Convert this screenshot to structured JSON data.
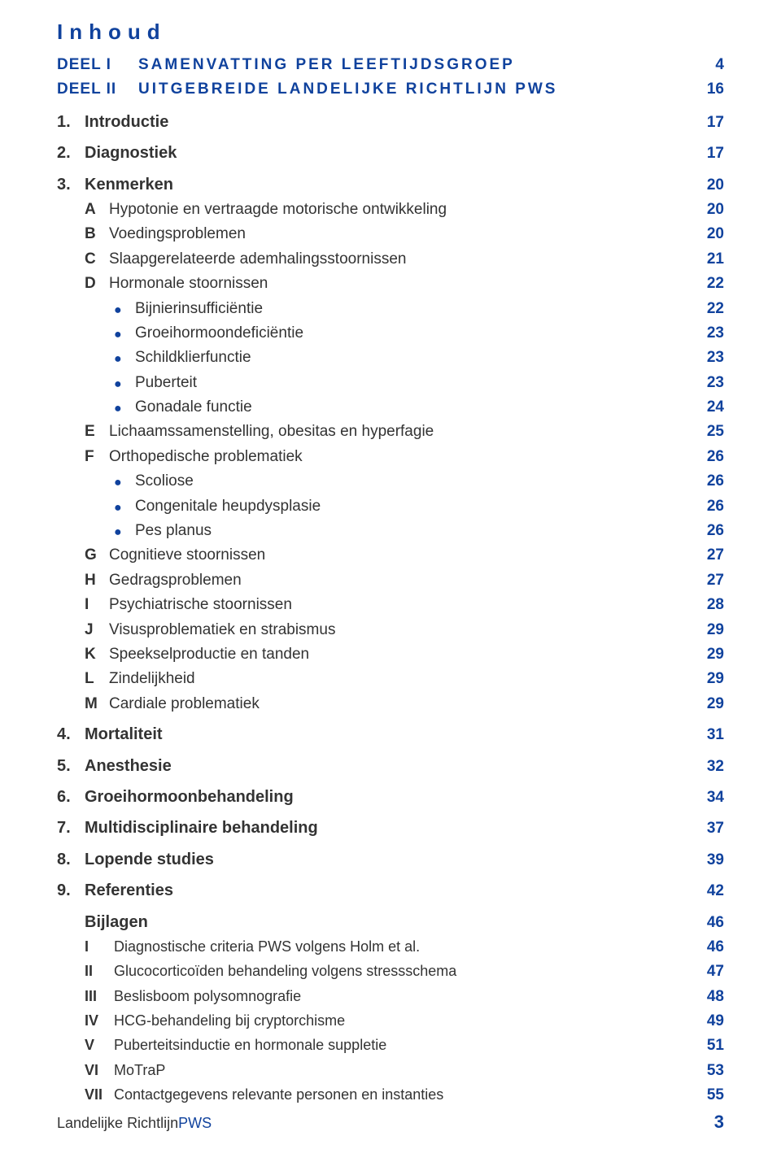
{
  "colors": {
    "accent": "#10429d",
    "text": "#333333",
    "background": "#ffffff"
  },
  "title": "Inhoud",
  "parts": [
    {
      "label": "DEEL I",
      "title": "SAMENVATTING PER LEEFTIJDSGROEP",
      "page": "4"
    },
    {
      "label": "DEEL II",
      "title": "UITGEBREIDE LANDELIJKE RICHTLIJN PWS",
      "page": "16"
    }
  ],
  "sections": [
    {
      "num": "1.",
      "title": "Introductie",
      "page": "17"
    },
    {
      "num": "2.",
      "title": "Diagnostiek",
      "page": "17"
    },
    {
      "num": "3.",
      "title": "Kenmerken",
      "page": "20",
      "subs": [
        {
          "letter": "A",
          "title": "Hypotonie en vertraagde motorische ontwikkeling",
          "page": "20"
        },
        {
          "letter": "B",
          "title": "Voedingsproblemen",
          "page": "20"
        },
        {
          "letter": "C",
          "title": "Slaapgerelateerde ademhalingsstoornissen",
          "page": "21"
        },
        {
          "letter": "D",
          "title": "Hormonale stoornissen",
          "page": "22",
          "bullets": [
            {
              "title": "Bijnierinsufficiëntie",
              "page": "22"
            },
            {
              "title": "Groeihormoondeficiëntie",
              "page": "23"
            },
            {
              "title": "Schildklierfunctie",
              "page": "23"
            },
            {
              "title": "Puberteit",
              "page": "23"
            },
            {
              "title": "Gonadale functie",
              "page": "24"
            }
          ]
        },
        {
          "letter": "E",
          "title": "Lichaamssamenstelling, obesitas en hyperfagie",
          "page": "25"
        },
        {
          "letter": "F",
          "title": "Orthopedische problematiek",
          "page": "26",
          "bullets": [
            {
              "title": "Scoliose",
              "page": "26"
            },
            {
              "title": "Congenitale heupdysplasie",
              "page": "26"
            },
            {
              "title": "Pes planus",
              "page": "26"
            }
          ]
        },
        {
          "letter": "G",
          "title": "Cognitieve stoornissen",
          "page": "27"
        },
        {
          "letter": "H",
          "title": "Gedragsproblemen",
          "page": "27"
        },
        {
          "letter": "I",
          "title": "Psychiatrische stoornissen",
          "page": "28"
        },
        {
          "letter": "J",
          "title": "Visusproblematiek en strabismus",
          "page": "29"
        },
        {
          "letter": "K",
          "title": "Speekselproductie en tanden",
          "page": "29"
        },
        {
          "letter": "L",
          "title": "Zindelijkheid",
          "page": "29"
        },
        {
          "letter": "M",
          "title": "Cardiale problematiek",
          "page": "29"
        }
      ]
    },
    {
      "num": "4.",
      "title": "Mortaliteit",
      "page": "31"
    },
    {
      "num": "5.",
      "title": "Anesthesie",
      "page": "32"
    },
    {
      "num": "6.",
      "title": "Groeihormoonbehandeling",
      "page": "34"
    },
    {
      "num": "7.",
      "title": "Multidisciplinaire behandeling",
      "page": "37"
    },
    {
      "num": "8.",
      "title": "Lopende studies",
      "page": "39"
    },
    {
      "num": "9.",
      "title": "Referenties",
      "page": "42"
    }
  ],
  "appendix": {
    "heading": "Bijlagen",
    "heading_page": "46",
    "items": [
      {
        "num": "I",
        "title": "Diagnostische criteria PWS volgens Holm et al.",
        "page": "46"
      },
      {
        "num": "II",
        "title": "Glucocorticoïden behandeling volgens stressschema",
        "page": "47"
      },
      {
        "num": "III",
        "title": "Beslisboom polysomnografie",
        "page": "48"
      },
      {
        "num": "IV",
        "title": "HCG-behandeling bij cryptorchisme",
        "page": "49"
      },
      {
        "num": "V",
        "title": "Puberteitsinductie en hormonale suppletie",
        "page": "51"
      },
      {
        "num": "VI",
        "title": "MoTraP",
        "page": "53"
      },
      {
        "num": "VII",
        "title": "Contactgegevens relevante personen en instanties",
        "page": "55"
      }
    ]
  },
  "footer": {
    "text1": "Landelijke Richtlijn ",
    "text2": "PWS",
    "page": "3"
  }
}
